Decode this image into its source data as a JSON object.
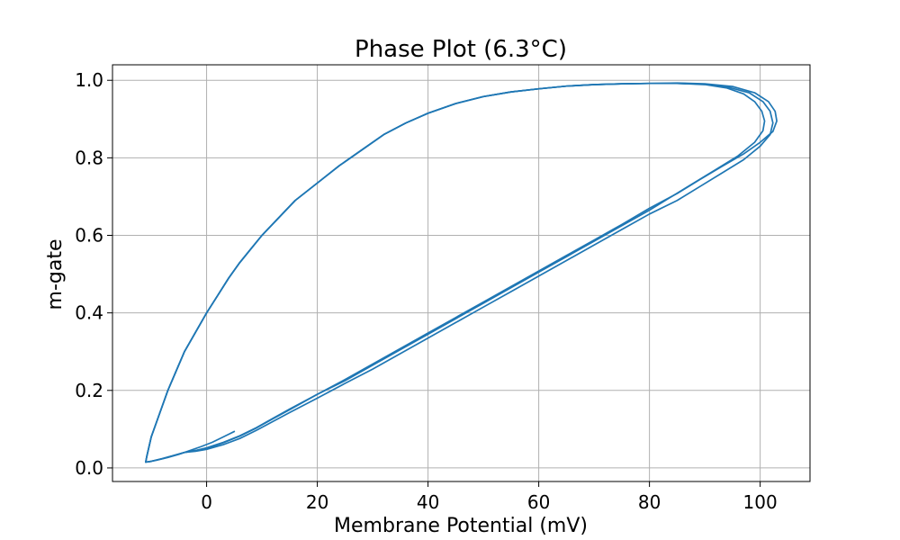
{
  "chart_data": {
    "type": "line",
    "title": "Phase Plot (6.3°C)",
    "xlabel": "Membrane Potential (mV)",
    "ylabel": "m-gate",
    "xlim": [
      -17,
      109
    ],
    "ylim": [
      -0.035,
      1.04
    ],
    "xticks": [
      0,
      20,
      40,
      60,
      80,
      100
    ],
    "yticks": [
      0.0,
      0.2,
      0.4,
      0.6,
      0.8,
      1.0
    ],
    "xtick_labels": [
      "0",
      "20",
      "40",
      "60",
      "80",
      "100"
    ],
    "ytick_labels": [
      "0.0",
      "0.2",
      "0.4",
      "0.6",
      "0.8",
      "1.0"
    ],
    "grid": true,
    "legend": "none",
    "colors": {
      "series": "#1f77b4"
    },
    "series": [
      {
        "x": [
          5,
          3,
          1,
          -1,
          -3,
          -5,
          -7,
          -9,
          -10.5,
          -11,
          -10.8,
          -10,
          -8.5,
          -7,
          -5.5,
          -4,
          -2,
          0,
          2,
          4,
          6,
          8,
          10,
          13,
          16,
          20,
          24,
          28,
          32,
          36,
          40,
          45,
          50,
          55,
          60,
          65,
          70,
          75,
          80,
          85,
          90,
          94,
          97,
          99,
          100.3,
          100.8,
          100.5,
          99,
          96,
          92,
          88,
          84,
          80,
          75,
          70,
          65,
          60,
          55,
          50,
          45,
          40,
          35,
          30,
          25,
          20,
          15,
          12,
          9,
          6,
          3,
          0,
          -2,
          -4
        ],
        "y": [
          0.094,
          0.08,
          0.066,
          0.055,
          0.045,
          0.035,
          0.027,
          0.02,
          0.016,
          0.015,
          0.03,
          0.08,
          0.14,
          0.2,
          0.25,
          0.3,
          0.35,
          0.4,
          0.445,
          0.49,
          0.53,
          0.565,
          0.6,
          0.645,
          0.69,
          0.735,
          0.78,
          0.82,
          0.86,
          0.89,
          0.915,
          0.94,
          0.958,
          0.97,
          0.978,
          0.985,
          0.989,
          0.991,
          0.992,
          0.992,
          0.989,
          0.98,
          0.965,
          0.945,
          0.92,
          0.895,
          0.87,
          0.84,
          0.805,
          0.77,
          0.735,
          0.7,
          0.665,
          0.625,
          0.585,
          0.545,
          0.505,
          0.465,
          0.425,
          0.385,
          0.345,
          0.305,
          0.265,
          0.225,
          0.19,
          0.15,
          0.127,
          0.103,
          0.082,
          0.065,
          0.05,
          0.045,
          0.04
        ]
      },
      {
        "x": [
          -4,
          -6,
          -8,
          -10,
          -11,
          -10.8,
          -10,
          -8.5,
          -7,
          -5.5,
          -4,
          -2,
          0,
          2,
          4,
          6,
          8,
          10,
          13,
          16,
          20,
          24,
          28,
          32,
          36,
          40,
          45,
          50,
          55,
          60,
          65,
          70,
          75,
          80,
          85,
          90,
          94,
          98,
          100.5,
          101.8,
          102.3,
          101.8,
          100,
          97,
          93,
          89,
          85,
          80,
          75,
          70,
          65,
          60,
          55,
          50,
          45,
          40,
          35,
          30,
          25,
          20,
          15,
          12,
          9,
          6,
          3,
          0,
          -2,
          -4
        ],
        "y": [
          0.04,
          0.032,
          0.024,
          0.017,
          0.015,
          0.03,
          0.08,
          0.14,
          0.2,
          0.25,
          0.3,
          0.35,
          0.4,
          0.445,
          0.49,
          0.53,
          0.565,
          0.6,
          0.645,
          0.69,
          0.735,
          0.78,
          0.82,
          0.86,
          0.89,
          0.915,
          0.94,
          0.958,
          0.97,
          0.978,
          0.985,
          0.989,
          0.991,
          0.992,
          0.992,
          0.99,
          0.983,
          0.968,
          0.945,
          0.92,
          0.89,
          0.86,
          0.83,
          0.795,
          0.76,
          0.725,
          0.69,
          0.655,
          0.615,
          0.575,
          0.535,
          0.495,
          0.455,
          0.415,
          0.375,
          0.335,
          0.295,
          0.255,
          0.218,
          0.18,
          0.143,
          0.12,
          0.097,
          0.076,
          0.06,
          0.048,
          0.043,
          0.04
        ]
      },
      {
        "x": [
          -4,
          -6,
          -8,
          -10,
          -11,
          -10.8,
          -10,
          -8.5,
          -7,
          -5.5,
          -4,
          -2,
          0,
          2,
          4,
          6,
          8,
          10,
          13,
          16,
          20,
          24,
          28,
          32,
          36,
          40,
          45,
          50,
          55,
          60,
          65,
          70,
          75,
          80,
          85,
          90,
          95,
          99,
          101.5,
          102.7,
          103,
          102.3,
          100,
          97,
          93,
          89,
          85,
          80,
          75,
          70,
          65,
          60,
          55,
          50,
          45,
          40,
          35,
          30,
          25,
          20,
          15,
          12,
          9,
          6,
          3,
          0,
          -2,
          -4
        ],
        "y": [
          0.04,
          0.032,
          0.024,
          0.017,
          0.015,
          0.03,
          0.08,
          0.14,
          0.2,
          0.25,
          0.3,
          0.35,
          0.4,
          0.445,
          0.49,
          0.53,
          0.565,
          0.6,
          0.645,
          0.69,
          0.735,
          0.78,
          0.82,
          0.86,
          0.89,
          0.915,
          0.94,
          0.958,
          0.97,
          0.978,
          0.985,
          0.989,
          0.991,
          0.992,
          0.993,
          0.991,
          0.984,
          0.968,
          0.945,
          0.92,
          0.895,
          0.868,
          0.84,
          0.81,
          0.777,
          0.743,
          0.708,
          0.67,
          0.628,
          0.588,
          0.548,
          0.508,
          0.468,
          0.428,
          0.388,
          0.348,
          0.308,
          0.268,
          0.228,
          0.19,
          0.152,
          0.128,
          0.104,
          0.083,
          0.066,
          0.052,
          0.045,
          0.04
        ]
      }
    ]
  }
}
